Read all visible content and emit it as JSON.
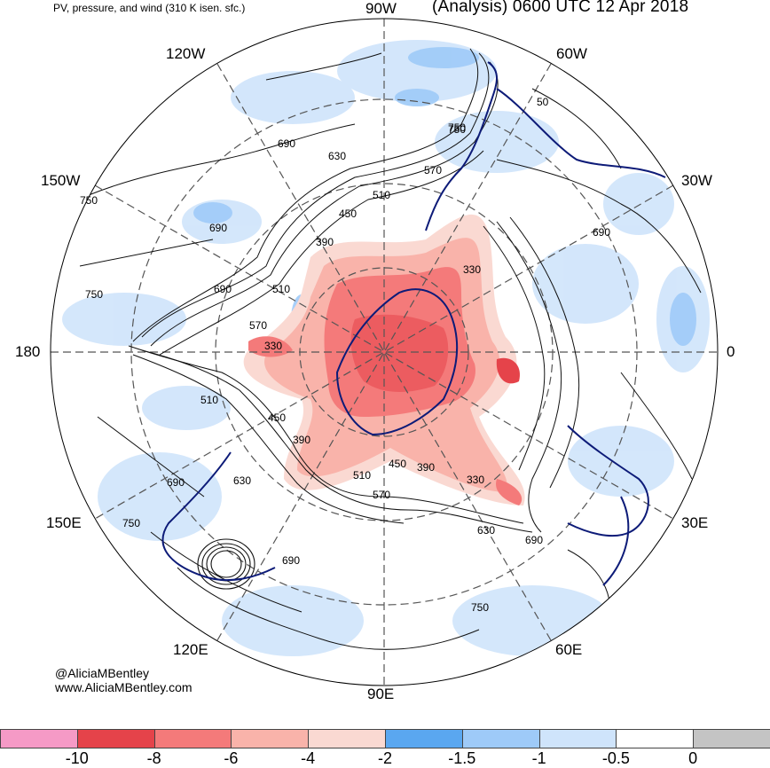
{
  "header": {
    "left_title": "PV, pressure, and wind (310 K isen. sfc.)",
    "right_title": "(Analysis) 0600 UTC 12 Apr 2018"
  },
  "longitude_labels": {
    "w90": "90W",
    "w120": "120W",
    "w60": "60W",
    "w150": "150W",
    "w30": "30W",
    "lon180": "180",
    "lon0": "0",
    "e150": "150E",
    "e30": "30E",
    "e120": "120E",
    "e60": "60E",
    "e90": "90E"
  },
  "contour_labels": [
    {
      "id": "c750-nw",
      "text": "750"
    },
    {
      "id": "c690-nw",
      "text": "690"
    },
    {
      "id": "c630-n",
      "text": "630"
    },
    {
      "id": "c570-n",
      "text": "570"
    },
    {
      "id": "c510-n",
      "text": "510"
    },
    {
      "id": "c450-n",
      "text": "450"
    },
    {
      "id": "c390-n",
      "text": "390"
    },
    {
      "id": "c750-ne",
      "text": "750"
    },
    {
      "id": "c690-e",
      "text": "690"
    },
    {
      "id": "c330-ne",
      "text": "330"
    },
    {
      "id": "c750-w",
      "text": "750"
    },
    {
      "id": "c690-w",
      "text": "690"
    },
    {
      "id": "c510-w",
      "text": "510"
    },
    {
      "id": "c570-w",
      "text": "570"
    },
    {
      "id": "c330-w",
      "text": "330"
    },
    {
      "id": "c690-w2",
      "text": "690"
    },
    {
      "id": "c510-sw",
      "text": "510"
    },
    {
      "id": "c450-sw",
      "text": "450"
    },
    {
      "id": "c390-sw",
      "text": "390"
    },
    {
      "id": "c630-sw",
      "text": "630"
    },
    {
      "id": "c690-sw",
      "text": "690"
    },
    {
      "id": "c750-sw",
      "text": "750"
    },
    {
      "id": "c510-s",
      "text": "510"
    },
    {
      "id": "c570-s",
      "text": "570"
    },
    {
      "id": "c390-s",
      "text": "390"
    },
    {
      "id": "c450-s",
      "text": "450"
    },
    {
      "id": "c330-s",
      "text": "330"
    },
    {
      "id": "c630-se",
      "text": "630"
    },
    {
      "id": "c690-se",
      "text": "690"
    },
    {
      "id": "c690-s",
      "text": "690"
    },
    {
      "id": "c750-se",
      "text": "750"
    },
    {
      "id": "c750-nne",
      "text": "750"
    },
    {
      "id": "c50-ne",
      "text": "50"
    }
  ],
  "credits": {
    "handle": "@AliciaMBentley",
    "website": "www.AliciaMBentley.com"
  },
  "colorbar": {
    "colors": [
      "#f59ac6",
      "#e5434a",
      "#f47a7a",
      "#f9b3aa",
      "#fad9d2",
      "#5aa7f0",
      "#9ecaf8",
      "#cfe4fb",
      "#ffffff",
      "#c4c4c4"
    ],
    "ticks": [
      "-10",
      "-8",
      "-6",
      "-4",
      "-2",
      "-1.5",
      "-1",
      "-0.5",
      "0"
    ]
  }
}
